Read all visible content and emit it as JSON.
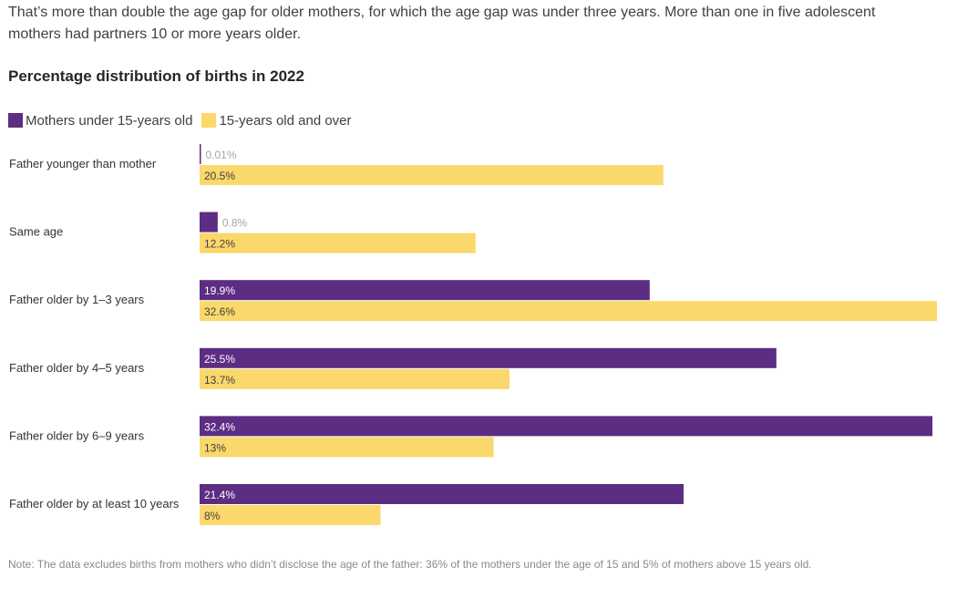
{
  "intro_text": "That’s more than double the age gap for older mothers, for which the age gap was under three years. More than one in five adolescent mothers had partners 10 or more years older.",
  "note": "Note: The data excludes births from mothers who didn’t disclose the age of the father: 36% of the mothers under the age of 15 and 5% of mothers above 15 years old.",
  "colors": {
    "under15": "#5c2d82",
    "over15": "#fbd86b",
    "label_on_dark": "#ffffff",
    "label_on_light": "#404040",
    "label_outside": "#a6a6a6"
  },
  "chart_data": {
    "type": "bar",
    "orientation": "horizontal",
    "title": "Percentage distribution of births in 2022",
    "legend_position": "top-left",
    "categories": [
      "Father younger than mother",
      "Same age",
      "Father older by 1–3 years",
      "Father older by 4–5 years",
      "Father older by 6–9 years",
      "Father older by at least 10 years"
    ],
    "series": [
      {
        "name": "Mothers under 15-years old",
        "values": [
          0.01,
          0.8,
          19.9,
          25.5,
          32.4,
          21.4
        ],
        "labels": [
          "0.01%",
          "0.8%",
          "19.9%",
          "25.5%",
          "32.4%",
          "21.4%"
        ]
      },
      {
        "name": "15-years old and over",
        "values": [
          20.5,
          12.2,
          32.6,
          13.7,
          13,
          8
        ],
        "labels": [
          "20.5%",
          "12.2%",
          "32.6%",
          "13.7%",
          "13%",
          "8%"
        ]
      }
    ],
    "xlim": [
      0,
      32.6
    ],
    "grid": false
  }
}
